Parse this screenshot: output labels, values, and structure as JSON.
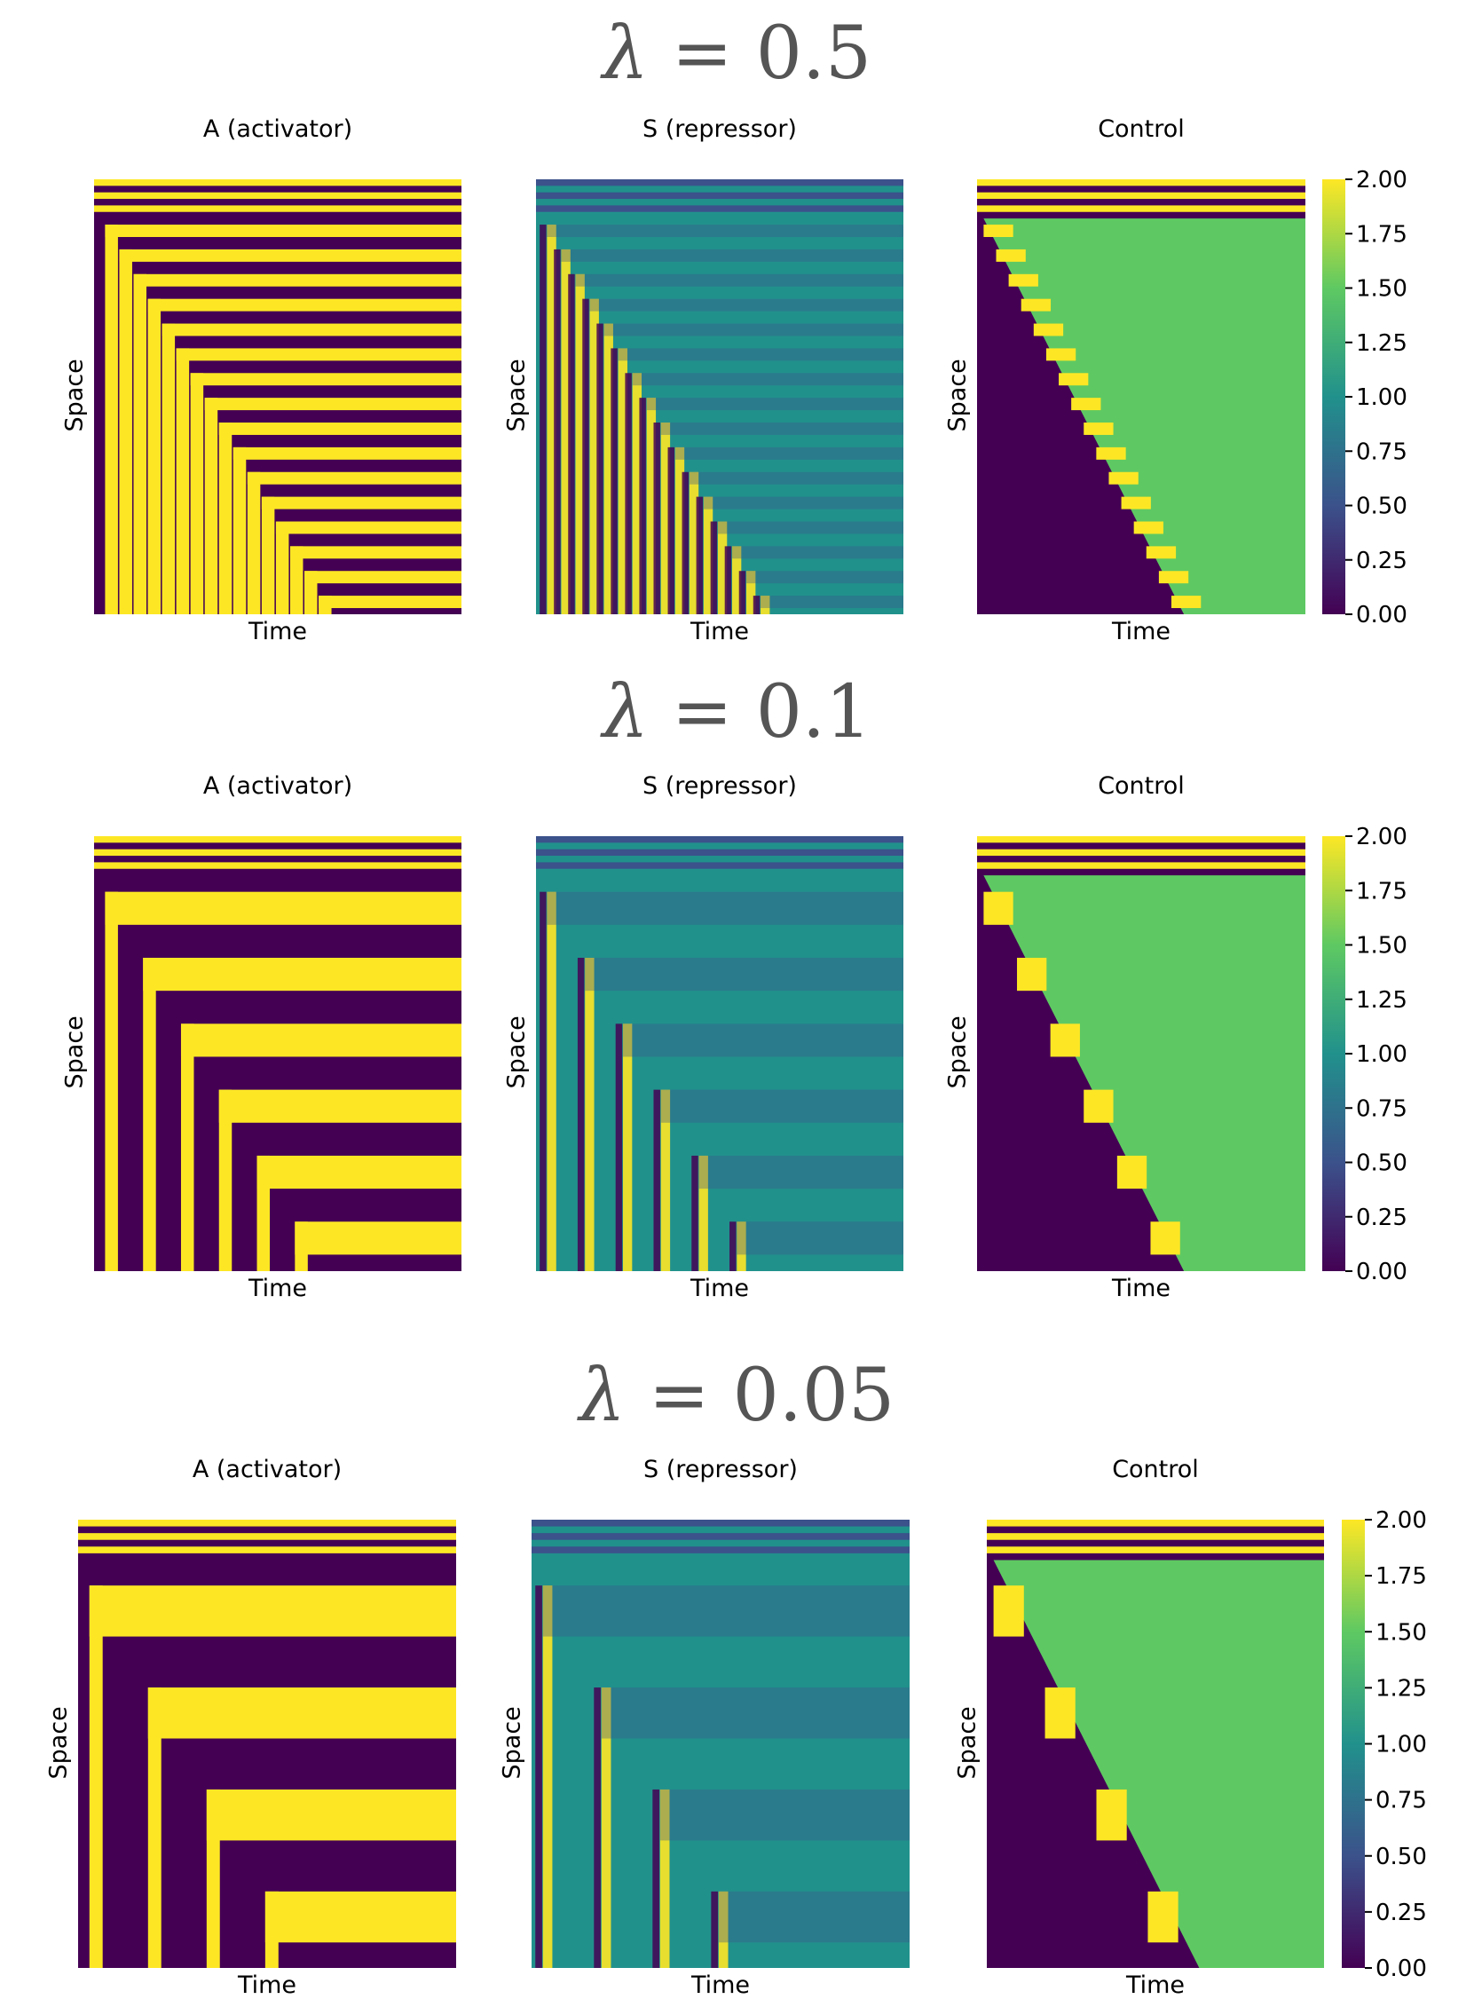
{
  "figure": {
    "rows": [
      {
        "title_symbol": "λ",
        "title_value": "= 0.5",
        "panels": [
          {
            "title": "A (activator)",
            "xlabel": "Time",
            "ylabel": "Space"
          },
          {
            "title": "S (repressor)",
            "xlabel": "Time",
            "ylabel": "Space"
          },
          {
            "title": "Control",
            "xlabel": "Time",
            "ylabel": "Space"
          }
        ],
        "colorbar_ticks": [
          "2.00",
          "1.75",
          "1.50",
          "1.25",
          "1.00",
          "0.75",
          "0.50",
          "0.25",
          "0.00"
        ]
      },
      {
        "title_symbol": "λ",
        "title_value": "= 0.1",
        "panels": [
          {
            "title": "A (activator)",
            "xlabel": "Time",
            "ylabel": "Space"
          },
          {
            "title": "S (repressor)",
            "xlabel": "Time",
            "ylabel": "Space"
          },
          {
            "title": "Control",
            "xlabel": "Time",
            "ylabel": "Space"
          }
        ],
        "colorbar_ticks": [
          "2.00",
          "1.75",
          "1.50",
          "1.25",
          "1.00",
          "0.75",
          "0.50",
          "0.25",
          "0.00"
        ]
      },
      {
        "title_symbol": "λ",
        "title_value": "= 0.05",
        "panels": [
          {
            "title": "A (activator)",
            "xlabel": "Time",
            "ylabel": "Space"
          },
          {
            "title": "S (repressor)",
            "xlabel": "Time",
            "ylabel": "Space"
          },
          {
            "title": "Control",
            "xlabel": "Time",
            "ylabel": "Space"
          }
        ],
        "colorbar_ticks": [
          "2.00",
          "1.75",
          "1.50",
          "1.25",
          "1.00",
          "0.75",
          "0.50",
          "0.25",
          "0.00"
        ]
      }
    ]
  },
  "chart_data": [
    {
      "type": "heatmap",
      "title": "A (activator)",
      "xlabel": "Time",
      "ylabel": "Space",
      "lambda": 0.5,
      "stripes": 16,
      "colormap": "viridis"
    },
    {
      "type": "heatmap",
      "title": "S (repressor)",
      "xlabel": "Time",
      "ylabel": "Space",
      "lambda": 0.5,
      "stripes": 16,
      "colormap": "viridis"
    },
    {
      "type": "heatmap",
      "title": "Control",
      "xlabel": "Time",
      "ylabel": "Space",
      "lambda": 0.5,
      "stripes": 16,
      "colormap": "viridis",
      "colorbar_range": [
        0,
        2
      ]
    },
    {
      "type": "heatmap",
      "title": "A (activator)",
      "xlabel": "Time",
      "ylabel": "Space",
      "lambda": 0.1,
      "stripes": 6,
      "colormap": "viridis"
    },
    {
      "type": "heatmap",
      "title": "S (repressor)",
      "xlabel": "Time",
      "ylabel": "Space",
      "lambda": 0.1,
      "stripes": 6,
      "colormap": "viridis"
    },
    {
      "type": "heatmap",
      "title": "Control",
      "xlabel": "Time",
      "ylabel": "Space",
      "lambda": 0.1,
      "stripes": 6,
      "colormap": "viridis",
      "colorbar_range": [
        0,
        2
      ]
    },
    {
      "type": "heatmap",
      "title": "A (activator)",
      "xlabel": "Time",
      "ylabel": "Space",
      "lambda": 0.05,
      "stripes": 4,
      "colormap": "viridis"
    },
    {
      "type": "heatmap",
      "title": "S (repressor)",
      "xlabel": "Time",
      "ylabel": "Space",
      "lambda": 0.05,
      "stripes": 4,
      "colormap": "viridis"
    },
    {
      "type": "heatmap",
      "title": "Control",
      "xlabel": "Time",
      "ylabel": "Space",
      "lambda": 0.05,
      "stripes": 4,
      "colormap": "viridis",
      "colorbar_range": [
        0,
        2
      ]
    }
  ],
  "colors": {
    "viridis_low": "#440154",
    "viridis_mid_low": "#3b528b",
    "viridis_mid": "#21918c",
    "viridis_mid_high": "#5ec962",
    "viridis_high": "#fde725",
    "title_gray": "#555555"
  }
}
